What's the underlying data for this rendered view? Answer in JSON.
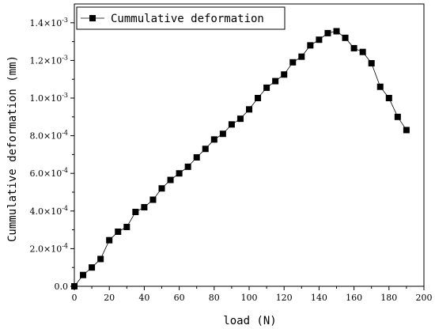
{
  "chart_data": {
    "type": "line",
    "xlabel": "load (N)",
    "ylabel": "Cummulative deformation (mm)",
    "xlim": [
      0,
      200
    ],
    "ylim": [
      0,
      0.0015
    ],
    "grid": false,
    "legend_position": "top-left",
    "x_ticks": [
      0,
      20,
      40,
      60,
      80,
      100,
      120,
      140,
      160,
      180,
      200
    ],
    "y_ticks": [
      {
        "value": 0,
        "mantissa": "0.0",
        "exponent": ""
      },
      {
        "value": 0.0002,
        "mantissa": "2.0×10",
        "exponent": "-4"
      },
      {
        "value": 0.0004,
        "mantissa": "4.0×10",
        "exponent": "-4"
      },
      {
        "value": 0.0006,
        "mantissa": "6.0×10",
        "exponent": "-4"
      },
      {
        "value": 0.0008,
        "mantissa": "8.0×10",
        "exponent": "-4"
      },
      {
        "value": 0.001,
        "mantissa": "1.0×10",
        "exponent": "-3"
      },
      {
        "value": 0.0012,
        "mantissa": "1.2×10",
        "exponent": "-3"
      },
      {
        "value": 0.0014,
        "mantissa": "1.4×10",
        "exponent": "-3"
      }
    ],
    "series": [
      {
        "name": "Cummulative deformation",
        "color": "#000000",
        "marker": "square",
        "x": [
          0,
          5,
          10,
          15,
          20,
          25,
          30,
          35,
          40,
          45,
          50,
          55,
          60,
          65,
          70,
          75,
          80,
          85,
          90,
          95,
          100,
          105,
          110,
          115,
          120,
          125,
          130,
          135,
          140,
          145,
          150,
          155,
          160,
          165,
          170,
          175,
          180,
          185,
          190
        ],
        "y": [
          0,
          6e-05,
          0.0001,
          0.000145,
          0.000245,
          0.00029,
          0.000315,
          0.000395,
          0.00042,
          0.00046,
          0.00052,
          0.000565,
          0.0006,
          0.000635,
          0.000685,
          0.00073,
          0.00078,
          0.00081,
          0.00086,
          0.00089,
          0.00094,
          0.001,
          0.001055,
          0.00109,
          0.001125,
          0.00119,
          0.00122,
          0.00128,
          0.00131,
          0.001345,
          0.001355,
          0.00132,
          0.001265,
          0.001245,
          0.001185,
          0.00106,
          0.001,
          0.0009,
          0.00083
        ]
      }
    ]
  }
}
